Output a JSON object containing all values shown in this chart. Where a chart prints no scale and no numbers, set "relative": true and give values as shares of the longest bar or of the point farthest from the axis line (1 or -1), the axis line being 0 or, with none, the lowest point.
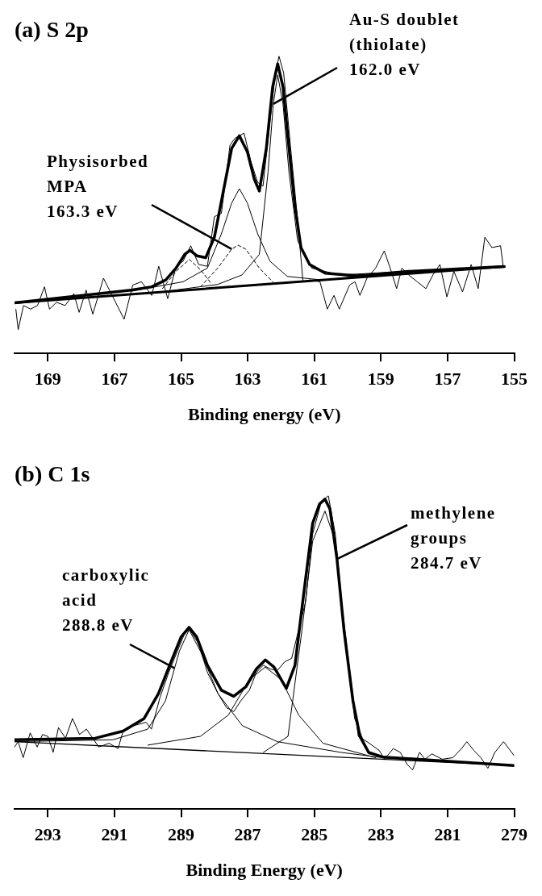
{
  "chart_data": [
    {
      "type": "line",
      "title": "(a) S 2p",
      "xlabel": "Binding energy (eV)",
      "relative": true,
      "xlim": [
        170,
        155
      ],
      "xticks": [
        169,
        167,
        165,
        163,
        161,
        159,
        157,
        155
      ],
      "grid": false,
      "legend": false,
      "marker": "none",
      "line_style": "solid",
      "series": [
        {
          "color": "#000000",
          "x": [
            169.96,
            169.89,
            169.73,
            169.52,
            169.31,
            169.1,
            168.95,
            168.74,
            168.48,
            168.22,
            168.06,
            167.85,
            167.65,
            167.33,
            167.07,
            166.71,
            166.45,
            166.19,
            165.88,
            165.67,
            165.4,
            165.15,
            164.94,
            164.71,
            164.47,
            164.21,
            164.0,
            163.79,
            163.53,
            163.38,
            163.11,
            162.9,
            162.7,
            162.54,
            162.33,
            162.18,
            162.06,
            161.92,
            161.71,
            161.5,
            161.34,
            161.14,
            160.83,
            160.61,
            160.41,
            160.25,
            159.94,
            159.78,
            159.63,
            159.42,
            159.16,
            158.9,
            158.69,
            158.53,
            158.37,
            158.17,
            157.91,
            157.65,
            157.44,
            157.23,
            157.02,
            156.81,
            156.55,
            156.29,
            156.08,
            155.88,
            155.67,
            155.41,
            155.33
          ],
          "values": [
            0.149,
            0.08,
            0.161,
            0.149,
            0.161,
            0.224,
            0.149,
            0.172,
            0.161,
            0.201,
            0.138,
            0.213,
            0.132,
            0.253,
            0.195,
            0.115,
            0.23,
            0.241,
            0.195,
            0.293,
            0.184,
            0.293,
            0.31,
            0.362,
            0.299,
            0.293,
            0.46,
            0.471,
            0.701,
            0.724,
            0.741,
            0.644,
            0.575,
            0.563,
            0.782,
            0.931,
            1.0,
            0.943,
            0.69,
            0.448,
            0.241,
            0.247,
            0.241,
            0.149,
            0.195,
            0.149,
            0.23,
            0.241,
            0.195,
            0.253,
            0.287,
            0.345,
            0.276,
            0.218,
            0.287,
            0.264,
            0.241,
            0.218,
            0.264,
            0.299,
            0.19,
            0.276,
            0.207,
            0.299,
            0.218,
            0.391,
            0.356,
            0.362,
            0.293
          ]
        },
        {
          "color": "#000000",
          "x": [
            170,
            166.5,
            165.88,
            165.46,
            165.15,
            164.89,
            164.73,
            164.52,
            164.26,
            164.0,
            163.74,
            163.48,
            163.25,
            163.01,
            162.8,
            162.65,
            162.44,
            162.25,
            162.1,
            161.94,
            161.76,
            161.58,
            161.4,
            161.14,
            160.67,
            159.73,
            158.17,
            155.3
          ],
          "values": [
            0.17,
            0.213,
            0.224,
            0.247,
            0.287,
            0.333,
            0.347,
            0.328,
            0.322,
            0.391,
            0.54,
            0.69,
            0.732,
            0.678,
            0.586,
            0.546,
            0.69,
            0.897,
            0.974,
            0.897,
            0.69,
            0.494,
            0.356,
            0.299,
            0.27,
            0.261,
            0.276,
            0.292
          ]
        },
        {
          "color": "#000000",
          "x": [
            170,
            155.3
          ],
          "values": [
            0.17,
            0.292
          ]
        },
        {
          "color": "#000000",
          "x": [
            165.46,
            163.9,
            163.17,
            162.65,
            162.39,
            162.23,
            162.1,
            161.94,
            161.76,
            161.5,
            161.08,
            160.25,
            155.3
          ],
          "values": [
            0.209,
            0.232,
            0.264,
            0.333,
            0.609,
            0.839,
            0.937,
            0.839,
            0.609,
            0.379,
            0.287,
            0.264,
            0.292
          ]
        },
        {
          "color": "#000000",
          "x": [
            166.5,
            164.94,
            164.21,
            163.79,
            163.48,
            163.25,
            163.01,
            162.7,
            162.33,
            161.81,
            160.77,
            159.21
          ],
          "values": [
            0.209,
            0.241,
            0.287,
            0.402,
            0.506,
            0.554,
            0.506,
            0.402,
            0.31,
            0.259,
            0.247,
            0.264
          ]
        },
        {
          "color": "#000000",
          "line_style": "dashed",
          "x": [
            164.42,
            163.9,
            163.48,
            163.29,
            163.06,
            162.65,
            162.23
          ],
          "values": [
            0.224,
            0.287,
            0.351,
            0.364,
            0.351,
            0.287,
            0.239
          ]
        },
        {
          "color": "#000000",
          "line_style": "dashed",
          "x": [
            165.56,
            165.15,
            164.75,
            164.42,
            164.1
          ],
          "values": [
            0.218,
            0.276,
            0.316,
            0.282,
            0.236
          ]
        }
      ],
      "annotations": [
        {
          "text": "Au-S doublet\n(thiolate)\n162.0 eV",
          "x": 162.23,
          "y": 0.839
        },
        {
          "text": "Physisorbed\nMPA\n163.3 eV",
          "x": 163.48,
          "y": 0.351
        }
      ]
    },
    {
      "type": "line",
      "title": "(b) C 1s",
      "xlabel": "Binding Energy (eV)",
      "relative": true,
      "xlim": [
        294,
        279
      ],
      "xticks": [
        293,
        291,
        289,
        287,
        285,
        283,
        281,
        279
      ],
      "grid": false,
      "legend": false,
      "marker": "none",
      "line_style": "solid",
      "series": [
        {
          "color": "#000000",
          "x": [
            294,
            293.89,
            293.74,
            293.53,
            293.32,
            293.16,
            293,
            292.84,
            292.68,
            292.47,
            292.26,
            292.05,
            291.84,
            291.47,
            291.16,
            290.89,
            290.74,
            290.42,
            290.05,
            289.89,
            289.63,
            289.37,
            289.11,
            288.89,
            288.74,
            288.47,
            288.21,
            287.89,
            287.63,
            287.42,
            287.21,
            286.95,
            286.74,
            286.53,
            286.32,
            286.11,
            285.89,
            285.68,
            285.47,
            285.26,
            285.05,
            284.79,
            284.58,
            284.37,
            284.16,
            283.89,
            283.68,
            283.42,
            283.05,
            282.89,
            282.63,
            282.42,
            282.21,
            282.05,
            281.84,
            281.68,
            281.47,
            281.16,
            280.84,
            280.58,
            280.42,
            280.21,
            280.0,
            279.79,
            279.58,
            279.32,
            279.16,
            279
          ],
          "values": [
            0.198,
            0.215,
            0.164,
            0.243,
            0.198,
            0.238,
            0.232,
            0.181,
            0.26,
            0.226,
            0.289,
            0.238,
            0.255,
            0.198,
            0.21,
            0.193,
            0.249,
            0.266,
            0.277,
            0.255,
            0.357,
            0.436,
            0.504,
            0.561,
            0.572,
            0.527,
            0.436,
            0.368,
            0.323,
            0.311,
            0.345,
            0.379,
            0.436,
            0.459,
            0.447,
            0.442,
            0.47,
            0.481,
            0.572,
            0.662,
            0.878,
            0.98,
            1.0,
            0.878,
            0.64,
            0.402,
            0.232,
            0.215,
            0.187,
            0.159,
            0.193,
            0.181,
            0.142,
            0.125,
            0.181,
            0.159,
            0.176,
            0.159,
            0.164,
            0.193,
            0.215,
            0.187,
            0.164,
            0.13,
            0.181,
            0.215,
            0.193,
            0.17
          ]
        },
        {
          "color": "#000000",
          "x": [
            294,
            291.58,
            290.74,
            290.11,
            289.68,
            289.26,
            289.0,
            288.76,
            288.53,
            288.21,
            287.79,
            287.42,
            287.05,
            286.74,
            286.47,
            286.21,
            285.84,
            285.58,
            285.32,
            285.05,
            284.84,
            284.68,
            284.53,
            284.32,
            284.11,
            283.84,
            283.63,
            283.37,
            282.95,
            281.05,
            279
          ],
          "values": [
            0.221,
            0.226,
            0.249,
            0.289,
            0.368,
            0.481,
            0.549,
            0.58,
            0.549,
            0.459,
            0.379,
            0.36,
            0.391,
            0.447,
            0.476,
            0.453,
            0.385,
            0.459,
            0.685,
            0.912,
            0.974,
            0.989,
            0.957,
            0.798,
            0.572,
            0.345,
            0.232,
            0.181,
            0.166,
            0.153,
            0.139
          ]
        },
        {
          "color": "#000000",
          "x": [
            294,
            279
          ],
          "values": [
            0.215,
            0.139
          ]
        },
        {
          "color": "#000000",
          "x": [
            294,
            291.05,
            290.0,
            289.47,
            289.05,
            288.76,
            288.42,
            287.89,
            287.16,
            286.11,
            284.21,
            282.95
          ],
          "values": [
            0.215,
            0.221,
            0.255,
            0.345,
            0.504,
            0.572,
            0.504,
            0.368,
            0.266,
            0.215,
            0.181,
            0.164
          ]
        },
        {
          "color": "#000000",
          "x": [
            290.0,
            288.42,
            287.58,
            286.95,
            286.47,
            285.99,
            285.47,
            284.74,
            283.16
          ],
          "values": [
            0.204,
            0.232,
            0.3,
            0.413,
            0.453,
            0.413,
            0.3,
            0.21,
            0.164
          ]
        },
        {
          "color": "#000000",
          "x": [
            286.53,
            285.79,
            285.37,
            285.05,
            284.68,
            284.37,
            284.11,
            283.79,
            283.37,
            282.11
          ],
          "values": [
            0.181,
            0.232,
            0.572,
            0.855,
            0.951,
            0.855,
            0.572,
            0.289,
            0.176,
            0.155
          ]
        }
      ],
      "annotations": [
        {
          "text": "carboxylic\nacid\n288.8 eV",
          "x": 289.2,
          "y": 0.45
        },
        {
          "text": "methylene\ngroups\n284.7 eV",
          "x": 284.32,
          "y": 0.798
        }
      ]
    }
  ]
}
